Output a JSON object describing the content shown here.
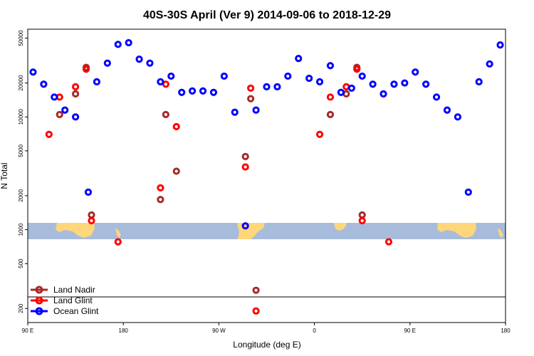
{
  "chart_data": {
    "type": "scatter",
    "title": "40S-30S April (Ver 9)   2014-09-06 to 2018-12-29",
    "xlabel": "Longitude (deg E)",
    "ylabel": "N Total",
    "y_scale": "log",
    "ylim": [
      150,
      60000
    ],
    "x_ticks": [
      "90 E",
      "180",
      "90 W",
      "0",
      "90 E",
      "180"
    ],
    "y_ticks": [
      200,
      500,
      1000,
      2000,
      5000,
      10000,
      20000,
      50000
    ],
    "legend_position": "bottom-left",
    "series": [
      {
        "name": "Land Nadir",
        "color": "#a52a2a",
        "points": [
          {
            "x": 30,
            "y": 10500
          },
          {
            "x": 45,
            "y": 16000
          },
          {
            "x": 55,
            "y": 27500
          },
          {
            "x": 60,
            "y": 1350
          },
          {
            "x": 125,
            "y": 1850
          },
          {
            "x": 130,
            "y": 10500
          },
          {
            "x": 140,
            "y": 3300
          },
          {
            "x": 205,
            "y": 4450
          },
          {
            "x": 210,
            "y": 14500
          },
          {
            "x": 215,
            "y": 290
          },
          {
            "x": 285,
            "y": 10500
          },
          {
            "x": 300,
            "y": 16000
          },
          {
            "x": 310,
            "y": 27500
          },
          {
            "x": 315,
            "y": 1350
          }
        ]
      },
      {
        "name": "Land Glint",
        "color": "#ff0000",
        "points": [
          {
            "x": 20,
            "y": 7000
          },
          {
            "x": 30,
            "y": 15000
          },
          {
            "x": 45,
            "y": 18500
          },
          {
            "x": 55,
            "y": 26500
          },
          {
            "x": 60,
            "y": 1200
          },
          {
            "x": 85,
            "y": 780
          },
          {
            "x": 125,
            "y": 2350
          },
          {
            "x": 130,
            "y": 19500
          },
          {
            "x": 140,
            "y": 8200
          },
          {
            "x": 205,
            "y": 3600
          },
          {
            "x": 210,
            "y": 18000
          },
          {
            "x": 215,
            "y": 190
          },
          {
            "x": 275,
            "y": 7000
          },
          {
            "x": 285,
            "y": 15000
          },
          {
            "x": 300,
            "y": 18500
          },
          {
            "x": 310,
            "y": 26500
          },
          {
            "x": 315,
            "y": 1200
          },
          {
            "x": 340,
            "y": 780
          }
        ]
      },
      {
        "name": "Ocean Glint",
        "color": "#0000ff",
        "points": [
          {
            "x": 5,
            "y": 25000
          },
          {
            "x": 15,
            "y": 19500
          },
          {
            "x": 25,
            "y": 15000
          },
          {
            "x": 35,
            "y": 11500
          },
          {
            "x": 45,
            "y": 10000
          },
          {
            "x": 57,
            "y": 2150
          },
          {
            "x": 65,
            "y": 20500
          },
          {
            "x": 75,
            "y": 30000
          },
          {
            "x": 85,
            "y": 44000
          },
          {
            "x": 95,
            "y": 45500
          },
          {
            "x": 105,
            "y": 32500
          },
          {
            "x": 115,
            "y": 30000
          },
          {
            "x": 125,
            "y": 20500
          },
          {
            "x": 135,
            "y": 23000
          },
          {
            "x": 145,
            "y": 16500
          },
          {
            "x": 155,
            "y": 17000
          },
          {
            "x": 165,
            "y": 17000
          },
          {
            "x": 175,
            "y": 16500
          },
          {
            "x": 185,
            "y": 23000
          },
          {
            "x": 195,
            "y": 11000
          },
          {
            "x": 205,
            "y": 1080
          },
          {
            "x": 215,
            "y": 11500
          },
          {
            "x": 225,
            "y": 18500
          },
          {
            "x": 235,
            "y": 18500
          },
          {
            "x": 245,
            "y": 23000
          },
          {
            "x": 255,
            "y": 33000
          },
          {
            "x": 265,
            "y": 22000
          },
          {
            "x": 275,
            "y": 20500
          },
          {
            "x": 285,
            "y": 28500
          },
          {
            "x": 295,
            "y": 16500
          },
          {
            "x": 305,
            "y": 18000
          },
          {
            "x": 315,
            "y": 23000
          },
          {
            "x": 325,
            "y": 19500
          },
          {
            "x": 335,
            "y": 16000
          },
          {
            "x": 345,
            "y": 19500
          },
          {
            "x": 355,
            "y": 20000
          },
          {
            "x": 365,
            "y": 25000
          },
          {
            "x": 375,
            "y": 19500
          },
          {
            "x": 385,
            "y": 15000
          },
          {
            "x": 395,
            "y": 11500
          },
          {
            "x": 405,
            "y": 10000
          },
          {
            "x": 415,
            "y": 2150
          },
          {
            "x": 425,
            "y": 20500
          },
          {
            "x": 435,
            "y": 29500
          },
          {
            "x": 445,
            "y": 43500
          }
        ]
      }
    ]
  }
}
